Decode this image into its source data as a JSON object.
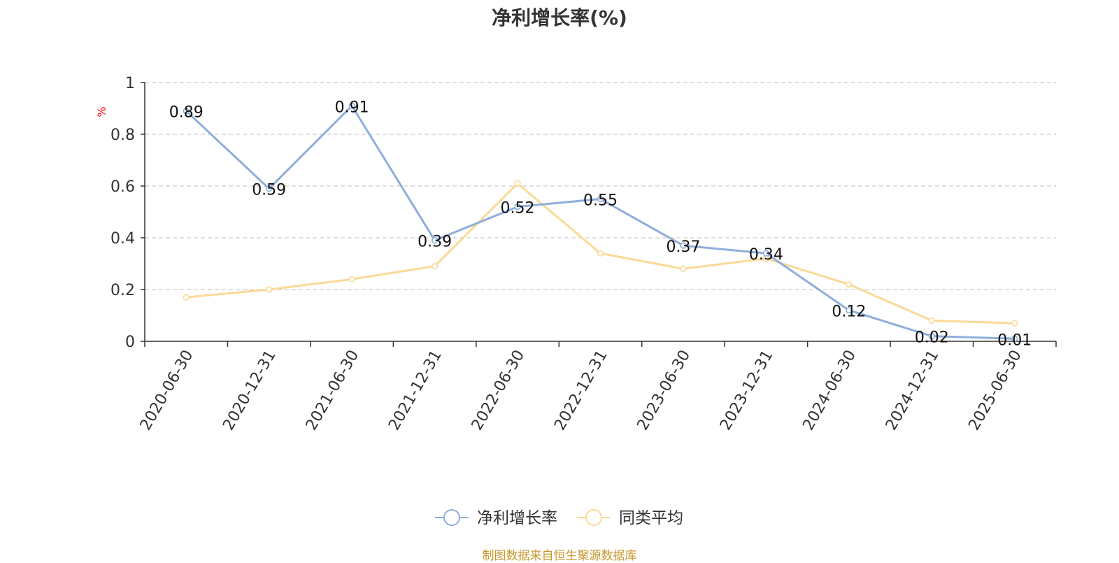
{
  "colors": {
    "series_1": "#8eaedb",
    "series_2": "#fbd996",
    "axis": "#333333",
    "grid": "#cccccc",
    "unit": "#ff0000",
    "source": "#c8962c"
  },
  "chart_data": {
    "type": "line",
    "title": "净利增长率(%)",
    "ylabel": "%",
    "xlabel": "",
    "categories": [
      "2020-06-30",
      "2020-12-31",
      "2021-06-30",
      "2021-12-31",
      "2022-06-30",
      "2022-12-31",
      "2023-06-30",
      "2023-12-31",
      "2024-06-30",
      "2024-12-31",
      "2025-06-30"
    ],
    "ylim": [
      0,
      1
    ],
    "yticks": [
      "0",
      "0.2",
      "0.4",
      "0.6",
      "0.8",
      "1"
    ],
    "grid": true,
    "legend_position": "bottom",
    "series": [
      {
        "name": "净利增长率",
        "values": [
          0.89,
          0.59,
          0.91,
          0.39,
          0.52,
          0.55,
          0.37,
          0.34,
          0.12,
          0.02,
          0.01
        ],
        "labels": [
          "0.89",
          "0.59",
          "0.91",
          "0.39",
          "0.52",
          "0.55",
          "0.37",
          "0.34",
          "0.12",
          "0.02",
          "0.01"
        ]
      },
      {
        "name": "同类平均",
        "values": [
          0.17,
          0.2,
          0.24,
          0.29,
          0.61,
          0.34,
          0.28,
          0.32,
          0.22,
          0.08,
          0.07
        ]
      }
    ]
  },
  "source": "制图数据来自恒生聚源数据库"
}
